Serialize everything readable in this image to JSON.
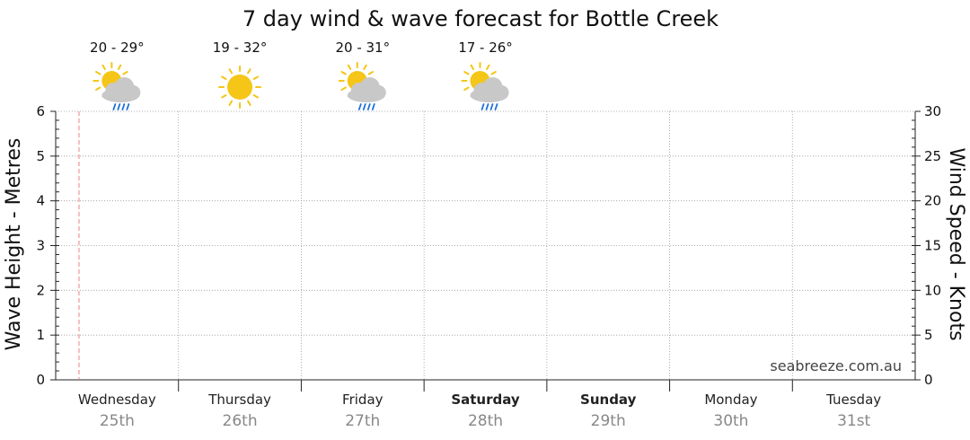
{
  "chart_data": {
    "type": "line",
    "title": "7 day wind & wave forecast for Bottle Creek",
    "ylabel_left": "Wave Height - Metres",
    "ylabel_right": "Wind Speed - Knots",
    "ylim_left": [
      0,
      6
    ],
    "ylim_right": [
      0,
      30
    ],
    "yticks_left": [
      "0",
      "1",
      "2",
      "3",
      "4",
      "5",
      "6"
    ],
    "yticks_right": [
      "0",
      "5",
      "10",
      "15",
      "20",
      "25",
      "30"
    ],
    "grid": true,
    "days": [
      {
        "name": "Wednesday",
        "date": "25th",
        "bold": false
      },
      {
        "name": "Thursday",
        "date": "26th",
        "bold": false
      },
      {
        "name": "Friday",
        "date": "27th",
        "bold": false
      },
      {
        "name": "Saturday",
        "date": "28th",
        "bold": true
      },
      {
        "name": "Sunday",
        "date": "29th",
        "bold": true
      },
      {
        "name": "Monday",
        "date": "30th",
        "bold": false
      },
      {
        "name": "Tuesday",
        "date": "31st",
        "bold": false
      }
    ],
    "forecasts": [
      {
        "temp": "20 - 29°",
        "icon": "sun-cloud-rain-icon"
      },
      {
        "temp": "19 - 32°",
        "icon": "sun-icon"
      },
      {
        "temp": "20 - 31°",
        "icon": "sun-cloud-rain-icon"
      },
      {
        "temp": "17 - 26°",
        "icon": "sun-cloud-rain-icon"
      }
    ],
    "current_time_marker_day_fraction": 0.19,
    "series": []
  },
  "watermark": "seabreeze.com.au",
  "colors": {
    "sun": "#f5c518",
    "cloud": "#c8c8c8",
    "rain": "#1e6fd9",
    "now_line": "#f08080",
    "grid": "#999999",
    "date_text": "#888888"
  }
}
